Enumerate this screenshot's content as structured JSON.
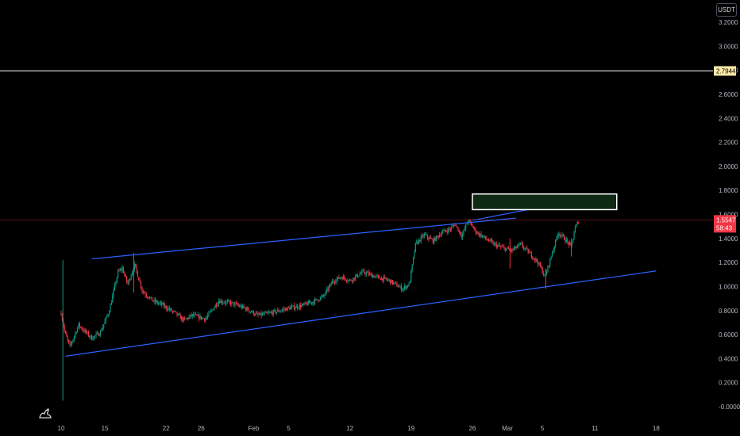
{
  "header": {
    "currency": "USDT"
  },
  "price_line": {
    "label": "2.7944",
    "value": 2.7944,
    "color": "#ffffff",
    "badge_bg": "#ffeaa7"
  },
  "last_price": {
    "price": "1.5547",
    "countdown": "58:43",
    "value": 1.5547,
    "color": "#f23645"
  },
  "colors": {
    "up": "#089981",
    "down": "#f23645",
    "channel": "#2962ff",
    "zone_fill": "#0f2a14",
    "zone_border": "#ffffff",
    "background": "#000000"
  },
  "chart_data": {
    "type": "candlestick",
    "y_ticks": [
      "3.2000",
      "3.0000",
      "2.8000",
      "2.6000",
      "2.4000",
      "2.2000",
      "2.0000",
      "1.8000",
      "1.6000",
      "1.4000",
      "1.2000",
      "1.0000",
      "0.8000",
      "0.6000",
      "0.4000",
      "0.2000",
      "-0.0000"
    ],
    "ylim": [
      -0.0,
      3.2
    ],
    "x_ticks": [
      "10",
      "15",
      "22",
      "26",
      "Feb",
      "5",
      "12",
      "19",
      "26",
      "Mar",
      "5",
      "11",
      "18"
    ],
    "x_tick_days": [
      10,
      15,
      22,
      26,
      32,
      36,
      43,
      50,
      57,
      61,
      65,
      71,
      78
    ],
    "x_range_days": [
      9.8,
      78
    ],
    "grid": false,
    "price_path": [
      [
        10.0,
        0.78
      ],
      [
        10.4,
        0.62
      ],
      [
        11.0,
        0.5
      ],
      [
        12.0,
        0.68
      ],
      [
        12.8,
        0.62
      ],
      [
        13.5,
        0.57
      ],
      [
        14.5,
        0.62
      ],
      [
        15.5,
        0.8
      ],
      [
        16.5,
        1.12
      ],
      [
        17.0,
        1.15
      ],
      [
        17.6,
        1.02
      ],
      [
        18.4,
        1.18
      ],
      [
        19.3,
        0.96
      ],
      [
        20.5,
        0.88
      ],
      [
        21.5,
        0.85
      ],
      [
        23.0,
        0.78
      ],
      [
        24.0,
        0.72
      ],
      [
        25.0,
        0.76
      ],
      [
        26.5,
        0.73
      ],
      [
        28.0,
        0.88
      ],
      [
        29.5,
        0.86
      ],
      [
        31.0,
        0.82
      ],
      [
        32.5,
        0.76
      ],
      [
        34.0,
        0.78
      ],
      [
        36.0,
        0.82
      ],
      [
        37.5,
        0.84
      ],
      [
        39.0,
        0.88
      ],
      [
        40.0,
        0.92
      ],
      [
        41.0,
        1.04
      ],
      [
        42.0,
        1.08
      ],
      [
        43.0,
        1.05
      ],
      [
        44.5,
        1.12
      ],
      [
        46.0,
        1.08
      ],
      [
        47.5,
        1.05
      ],
      [
        49.0,
        0.98
      ],
      [
        49.8,
        1.02
      ],
      [
        50.5,
        1.35
      ],
      [
        51.5,
        1.43
      ],
      [
        52.5,
        1.38
      ],
      [
        53.5,
        1.45
      ],
      [
        54.5,
        1.48
      ],
      [
        55.0,
        1.52
      ],
      [
        55.8,
        1.42
      ],
      [
        56.5,
        1.55
      ],
      [
        57.5,
        1.45
      ],
      [
        58.5,
        1.4
      ],
      [
        59.5,
        1.35
      ],
      [
        60.5,
        1.32
      ],
      [
        61.5,
        1.3
      ],
      [
        62.5,
        1.35
      ],
      [
        63.5,
        1.28
      ],
      [
        64.5,
        1.2
      ],
      [
        65.3,
        1.08
      ],
      [
        66.0,
        1.25
      ],
      [
        66.8,
        1.45
      ],
      [
        67.5,
        1.4
      ],
      [
        68.3,
        1.33
      ],
      [
        68.7,
        1.48
      ],
      [
        69.2,
        1.5547
      ]
    ],
    "channel_upper": {
      "from": [
        13.5,
        1.23
      ],
      "to": [
        62.0,
        1.57
      ]
    },
    "channel_upper_ext": {
      "from": [
        57.0,
        1.55
      ],
      "to": [
        71.0,
        1.75
      ]
    },
    "channel_lower": {
      "from": [
        10.5,
        0.42
      ],
      "to": [
        78.0,
        1.13
      ]
    },
    "zone": {
      "x": [
        57.0,
        73.5
      ],
      "y": [
        1.64,
        1.77
      ]
    }
  }
}
